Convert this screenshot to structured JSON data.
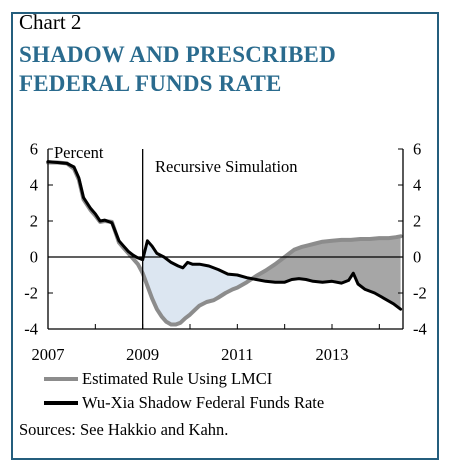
{
  "header": {
    "chart_number": "Chart 2",
    "title": "SHADOW AND PRESCRIBED FEDERAL FUNDS RATE"
  },
  "footer": {
    "sources": "Sources: See Hakkio and Kahn."
  },
  "chart_data": {
    "type": "line",
    "title": "SHADOW AND PRESCRIBED FEDERAL FUNDS RATE",
    "ylabel": "Percent",
    "xlabel": "",
    "xlim": [
      2007,
      2014.5
    ],
    "ylim": [
      -4,
      6
    ],
    "x_ticks": [
      2007,
      2009,
      2011,
      2013
    ],
    "y_ticks": [
      -4,
      -2,
      0,
      2,
      4,
      6
    ],
    "x_tick_labels": [
      "2007",
      "2009",
      "2011",
      "2013"
    ],
    "y_tick_labels": [
      "-4",
      "-2",
      "0",
      "2",
      "4",
      "6"
    ],
    "annotation": {
      "text": "Recursive Simulation",
      "start_x": 2009
    },
    "legend_position": "bottom",
    "grid": false,
    "colors": {
      "rule": "#8c8c8c",
      "shadow": "#000000",
      "fill_rule_below": "#dce6f1",
      "fill_rule_above": "#a6a6a6",
      "axis": "#000000"
    },
    "series": [
      {
        "name": "Estimated Rule Using LMCI",
        "x": [
          2007.0,
          2007.2,
          2007.4,
          2007.55,
          2007.65,
          2007.75,
          2007.9,
          2008.0,
          2008.1,
          2008.2,
          2008.35,
          2008.5,
          2008.6,
          2008.7,
          2008.8,
          2008.9,
          2009.0,
          2009.1,
          2009.2,
          2009.3,
          2009.4,
          2009.5,
          2009.6,
          2009.7,
          2009.8,
          2009.9,
          2010.0,
          2010.1,
          2010.2,
          2010.35,
          2010.5,
          2010.6,
          2010.75,
          2010.9,
          2011.0,
          2011.2,
          2011.4,
          2011.6,
          2011.8,
          2012.0,
          2012.1,
          2012.2,
          2012.35,
          2012.5,
          2012.65,
          2012.8,
          2013.0,
          2013.2,
          2013.4,
          2013.6,
          2013.8,
          2014.0,
          2014.2,
          2014.35,
          2014.45
        ],
        "y": [
          5.25,
          5.25,
          5.2,
          4.9,
          4.3,
          3.2,
          2.6,
          2.3,
          1.95,
          2.0,
          1.95,
          0.8,
          0.5,
          0.2,
          -0.1,
          -0.4,
          -0.9,
          -1.6,
          -2.3,
          -2.9,
          -3.3,
          -3.6,
          -3.75,
          -3.75,
          -3.65,
          -3.4,
          -3.2,
          -2.95,
          -2.7,
          -2.5,
          -2.4,
          -2.25,
          -2.0,
          -1.8,
          -1.7,
          -1.4,
          -1.05,
          -0.75,
          -0.4,
          0.0,
          0.2,
          0.4,
          0.55,
          0.65,
          0.75,
          0.85,
          0.9,
          0.95,
          0.95,
          1.0,
          1.0,
          1.05,
          1.05,
          1.1,
          1.15
        ]
      },
      {
        "name": "Wu-Xia Shadow Federal Funds Rate",
        "x": [
          2007.0,
          2007.2,
          2007.4,
          2007.55,
          2007.65,
          2007.75,
          2007.9,
          2008.0,
          2008.1,
          2008.2,
          2008.35,
          2008.5,
          2008.6,
          2008.7,
          2008.8,
          2008.9,
          2009.0,
          2009.1,
          2009.2,
          2009.3,
          2009.45,
          2009.6,
          2009.75,
          2009.85,
          2009.95,
          2010.05,
          2010.2,
          2010.4,
          2010.6,
          2010.8,
          2011.0,
          2011.2,
          2011.4,
          2011.6,
          2011.8,
          2012.0,
          2012.15,
          2012.3,
          2012.45,
          2012.6,
          2012.8,
          2013.0,
          2013.2,
          2013.35,
          2013.45,
          2013.55,
          2013.7,
          2013.9,
          2014.1,
          2014.3,
          2014.45
        ],
        "y": [
          5.3,
          5.25,
          5.2,
          5.0,
          4.4,
          3.3,
          2.7,
          2.4,
          2.0,
          2.05,
          1.9,
          0.9,
          0.6,
          0.3,
          0.1,
          -0.05,
          -0.15,
          0.9,
          0.6,
          0.2,
          0.0,
          -0.3,
          -0.5,
          -0.6,
          -0.3,
          -0.4,
          -0.4,
          -0.5,
          -0.7,
          -0.95,
          -1.0,
          -1.15,
          -1.25,
          -1.35,
          -1.4,
          -1.4,
          -1.25,
          -1.2,
          -1.25,
          -1.35,
          -1.4,
          -1.35,
          -1.45,
          -1.3,
          -0.9,
          -1.5,
          -1.8,
          -2.0,
          -2.3,
          -2.6,
          -2.9
        ]
      }
    ]
  }
}
